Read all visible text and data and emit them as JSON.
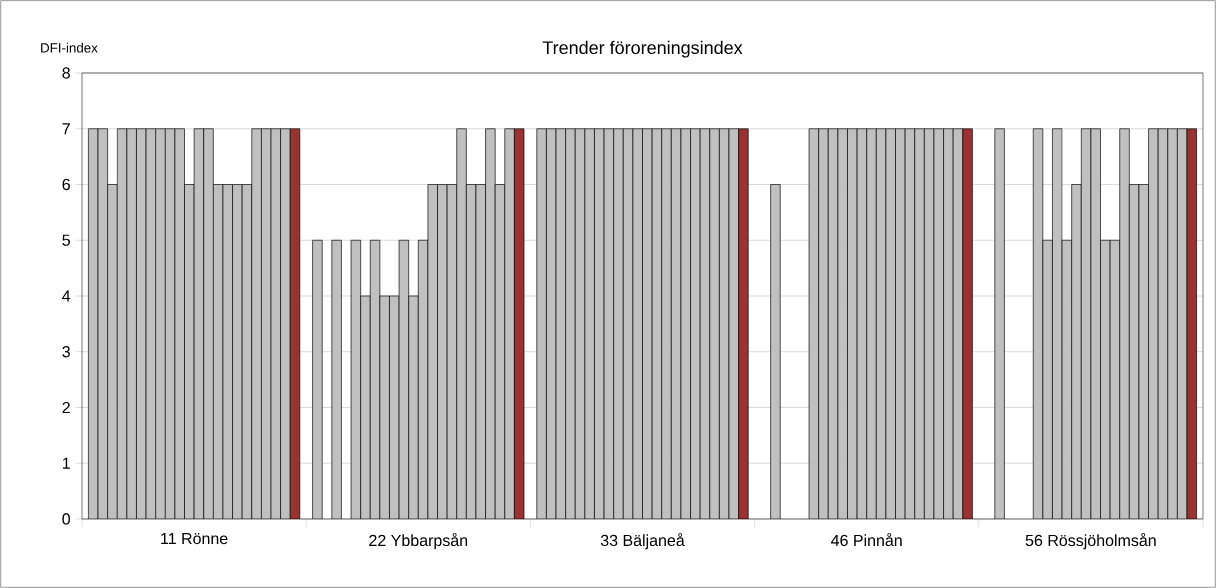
{
  "chart_data": {
    "type": "bar",
    "title": "Trender föroreningsindex",
    "ylabel": "DFI-index",
    "categories": [
      "11 Rönne",
      "22 Ybbarpsån",
      "33 Bäljaneå",
      "46 Pinnån",
      "56 Rössjöholmsån"
    ],
    "ylim": [
      0,
      8
    ],
    "yticks": [
      0,
      1,
      2,
      3,
      4,
      5,
      6,
      7,
      8
    ],
    "grid": "y",
    "series": [
      {
        "color": "#c0c0c0",
        "values": [
          7,
          5,
          7,
          null,
          null
        ]
      },
      {
        "color": "#c0c0c0",
        "values": [
          7,
          null,
          7,
          6,
          7
        ]
      },
      {
        "color": "#c0c0c0",
        "values": [
          6,
          5,
          7,
          null,
          null
        ]
      },
      {
        "color": "#c0c0c0",
        "values": [
          7,
          null,
          7,
          null,
          null
        ]
      },
      {
        "color": "#c0c0c0",
        "values": [
          7,
          5,
          7,
          null,
          null
        ]
      },
      {
        "color": "#c0c0c0",
        "values": [
          7,
          4,
          7,
          7,
          7
        ]
      },
      {
        "color": "#c0c0c0",
        "values": [
          7,
          5,
          7,
          7,
          5
        ]
      },
      {
        "color": "#c0c0c0",
        "values": [
          7,
          4,
          7,
          7,
          7
        ]
      },
      {
        "color": "#c0c0c0",
        "values": [
          7,
          4,
          7,
          7,
          5
        ]
      },
      {
        "color": "#c0c0c0",
        "values": [
          7,
          5,
          7,
          7,
          6
        ]
      },
      {
        "color": "#c0c0c0",
        "values": [
          6,
          4,
          7,
          7,
          7
        ]
      },
      {
        "color": "#c0c0c0",
        "values": [
          7,
          5,
          7,
          7,
          7
        ]
      },
      {
        "color": "#c0c0c0",
        "values": [
          7,
          6,
          7,
          7,
          5
        ]
      },
      {
        "color": "#c0c0c0",
        "values": [
          6,
          6,
          7,
          7,
          5
        ]
      },
      {
        "color": "#c0c0c0",
        "values": [
          6,
          6,
          7,
          7,
          7
        ]
      },
      {
        "color": "#c0c0c0",
        "values": [
          6,
          7,
          7,
          7,
          6
        ]
      },
      {
        "color": "#c0c0c0",
        "values": [
          6,
          6,
          7,
          7,
          6
        ]
      },
      {
        "color": "#c0c0c0",
        "values": [
          7,
          6,
          7,
          7,
          7
        ]
      },
      {
        "color": "#c0c0c0",
        "values": [
          7,
          7,
          7,
          7,
          7
        ]
      },
      {
        "color": "#c0c0c0",
        "values": [
          7,
          6,
          7,
          7,
          7
        ]
      },
      {
        "color": "#c0c0c0",
        "values": [
          7,
          7,
          7,
          7,
          7
        ]
      },
      {
        "color": "#993333",
        "values": [
          7,
          7,
          7,
          7,
          7
        ]
      }
    ]
  }
}
